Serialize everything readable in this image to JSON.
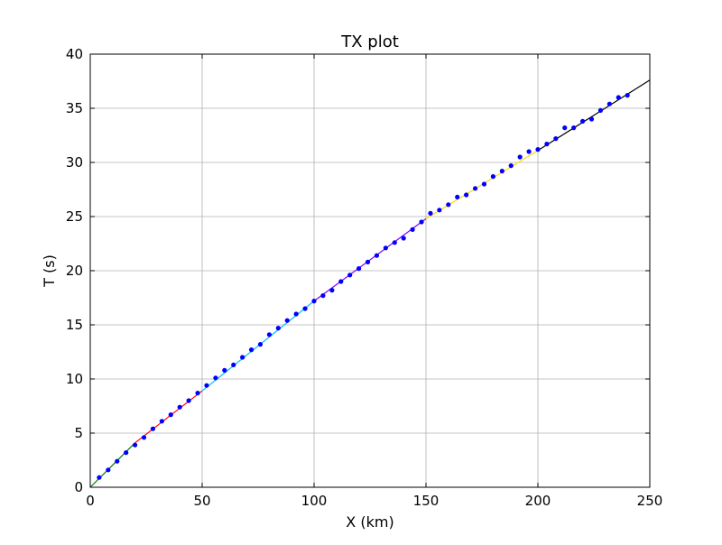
{
  "chart_data": {
    "type": "line",
    "title": "TX plot",
    "xlabel": "X (km)",
    "ylabel": "T (s)",
    "xlim": [
      0,
      250
    ],
    "ylim": [
      0,
      40
    ],
    "grid": true,
    "x_ticks": [
      "0",
      "50",
      "100",
      "150",
      "200",
      "250"
    ],
    "y_ticks": [
      "0",
      "5",
      "10",
      "15",
      "20",
      "25",
      "30",
      "35",
      "40"
    ],
    "x_tick_values": [
      0,
      50,
      100,
      150,
      200,
      250
    ],
    "y_tick_values": [
      0,
      5,
      10,
      15,
      20,
      25,
      30,
      35,
      40
    ],
    "segments": [
      {
        "color": "#008000",
        "x": [
          0,
          20
        ],
        "y": [
          0,
          4.1
        ]
      },
      {
        "color": "#ff0000",
        "x": [
          20,
          50
        ],
        "y": [
          4.1,
          8.9
        ]
      },
      {
        "color": "#00bfff",
        "x": [
          50,
          100
        ],
        "y": [
          8.9,
          17.2
        ]
      },
      {
        "color": "#8000ff",
        "x": [
          100,
          150
        ],
        "y": [
          17.2,
          24.8
        ]
      },
      {
        "color": "#ffd700",
        "x": [
          150,
          200
        ],
        "y": [
          24.8,
          31.1
        ]
      },
      {
        "color": "#000000",
        "x": [
          200,
          250
        ],
        "y": [
          31.1,
          37.6
        ]
      }
    ],
    "points": {
      "color": "#0000ff",
      "x": [
        4,
        8,
        12,
        16,
        20,
        24,
        28,
        32,
        36,
        40,
        44,
        48,
        52,
        56,
        60,
        64,
        68,
        72,
        76,
        80,
        84,
        88,
        92,
        96,
        100,
        104,
        108,
        112,
        116,
        120,
        124,
        128,
        132,
        136,
        140,
        144,
        148,
        152,
        156,
        160,
        164,
        168,
        172,
        176,
        180,
        184,
        188,
        192,
        196,
        200,
        204,
        208,
        212,
        216,
        220,
        224,
        228,
        232,
        236,
        240
      ],
      "y": [
        0.9,
        1.6,
        2.4,
        3.2,
        3.9,
        4.6,
        5.4,
        6.1,
        6.7,
        7.4,
        8.0,
        8.7,
        9.4,
        10.1,
        10.8,
        11.3,
        12.0,
        12.7,
        13.2,
        14.1,
        14.7,
        15.4,
        16.0,
        16.5,
        17.2,
        17.7,
        18.2,
        19.0,
        19.6,
        20.2,
        20.8,
        21.4,
        22.1,
        22.6,
        23.0,
        23.8,
        24.5,
        25.3,
        25.6,
        26.1,
        26.8,
        27.0,
        27.6,
        28.0,
        28.7,
        29.2,
        29.7,
        30.5,
        31.0,
        31.2,
        31.7,
        32.2,
        33.2,
        33.2,
        33.8,
        34.0,
        34.8,
        35.4,
        36.0,
        36.2
      ]
    }
  }
}
